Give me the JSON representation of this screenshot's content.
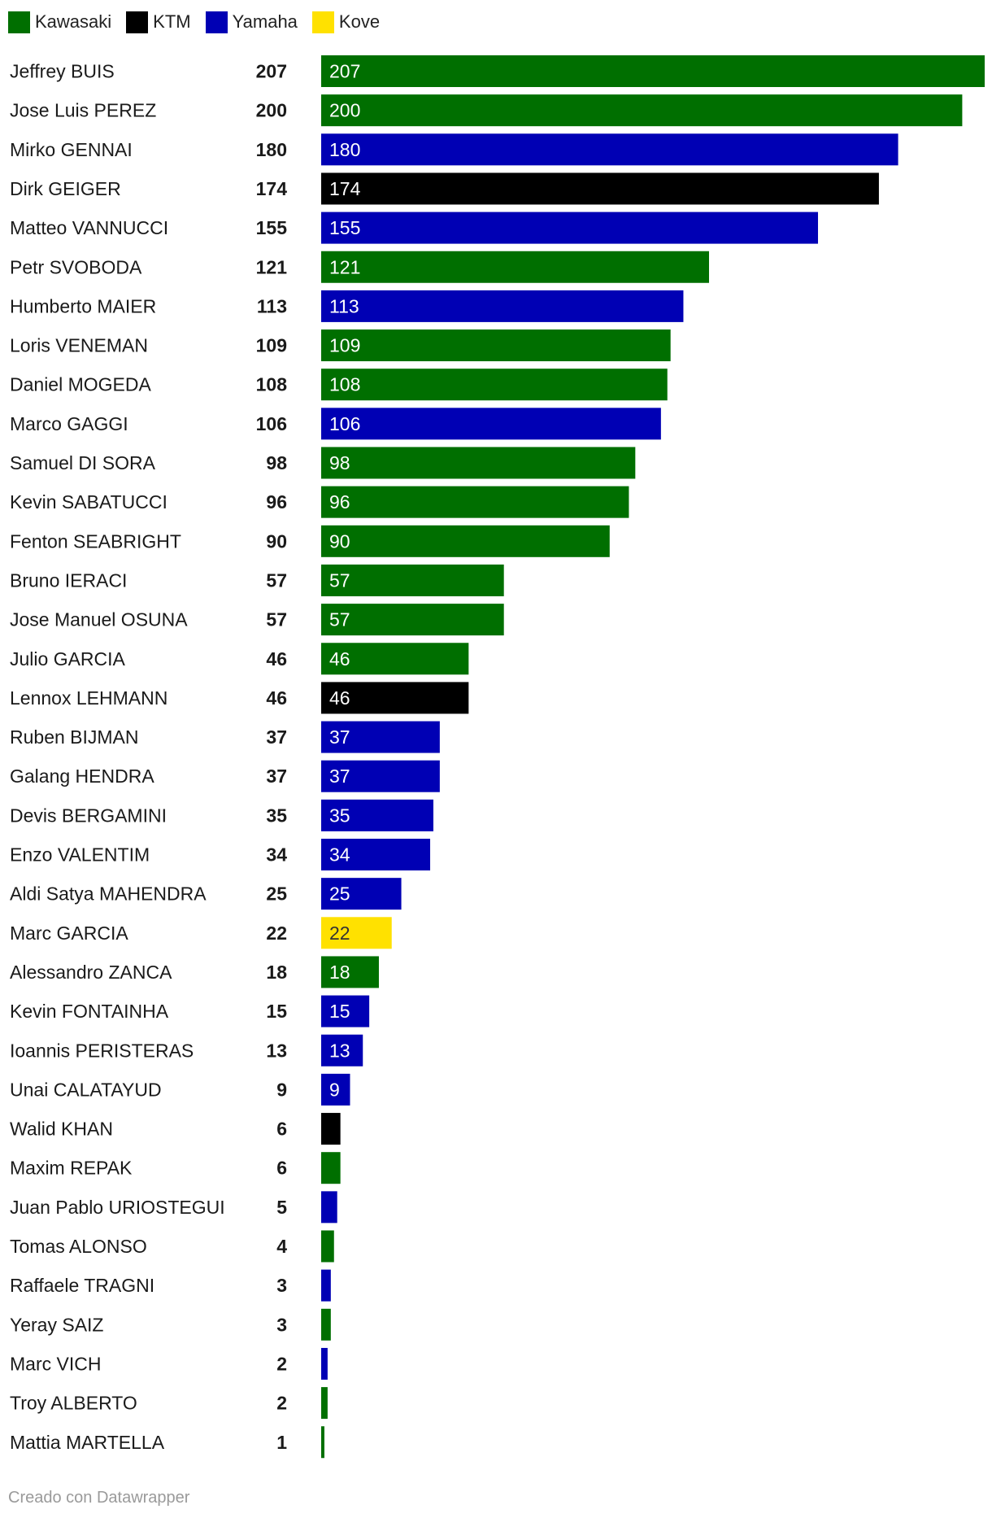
{
  "legend": [
    {
      "label": "Kawasaki",
      "color": "#006f00"
    },
    {
      "label": "KTM",
      "color": "#000000"
    },
    {
      "label": "Yamaha",
      "color": "#0000b4"
    },
    {
      "label": "Kove",
      "color": "#ffe100"
    }
  ],
  "footer": "Creado con Datawrapper",
  "chart_data": {
    "type": "bar",
    "orientation": "horizontal",
    "xlim": [
      0,
      207
    ],
    "grid": false,
    "legend_position": "top-left",
    "rows": [
      {
        "name": "Jeffrey BUIS",
        "value": 207,
        "brand": "Kawasaki"
      },
      {
        "name": "Jose Luis PEREZ",
        "value": 200,
        "brand": "Kawasaki"
      },
      {
        "name": "Mirko GENNAI",
        "value": 180,
        "brand": "Yamaha"
      },
      {
        "name": "Dirk GEIGER",
        "value": 174,
        "brand": "KTM"
      },
      {
        "name": "Matteo VANNUCCI",
        "value": 155,
        "brand": "Yamaha"
      },
      {
        "name": "Petr SVOBODA",
        "value": 121,
        "brand": "Kawasaki"
      },
      {
        "name": "Humberto MAIER",
        "value": 113,
        "brand": "Yamaha"
      },
      {
        "name": "Loris VENEMAN",
        "value": 109,
        "brand": "Kawasaki"
      },
      {
        "name": "Daniel MOGEDA",
        "value": 108,
        "brand": "Kawasaki"
      },
      {
        "name": "Marco GAGGI",
        "value": 106,
        "brand": "Yamaha"
      },
      {
        "name": "Samuel DI SORA",
        "value": 98,
        "brand": "Kawasaki"
      },
      {
        "name": "Kevin SABATUCCI",
        "value": 96,
        "brand": "Kawasaki"
      },
      {
        "name": "Fenton SEABRIGHT",
        "value": 90,
        "brand": "Kawasaki"
      },
      {
        "name": "Bruno IERACI",
        "value": 57,
        "brand": "Kawasaki"
      },
      {
        "name": "Jose Manuel OSUNA",
        "value": 57,
        "brand": "Kawasaki"
      },
      {
        "name": "Julio GARCIA",
        "value": 46,
        "brand": "Kawasaki"
      },
      {
        "name": "Lennox LEHMANN",
        "value": 46,
        "brand": "KTM"
      },
      {
        "name": "Ruben BIJMAN",
        "value": 37,
        "brand": "Yamaha"
      },
      {
        "name": "Galang HENDRA",
        "value": 37,
        "brand": "Yamaha"
      },
      {
        "name": "Devis BERGAMINI",
        "value": 35,
        "brand": "Yamaha"
      },
      {
        "name": "Enzo VALENTIM",
        "value": 34,
        "brand": "Yamaha"
      },
      {
        "name": "Aldi Satya MAHENDRA",
        "value": 25,
        "brand": "Yamaha"
      },
      {
        "name": "Marc GARCIA",
        "value": 22,
        "brand": "Kove"
      },
      {
        "name": "Alessandro ZANCA",
        "value": 18,
        "brand": "Kawasaki"
      },
      {
        "name": "Kevin FONTAINHA",
        "value": 15,
        "brand": "Yamaha"
      },
      {
        "name": "Ioannis PERISTERAS",
        "value": 13,
        "brand": "Yamaha"
      },
      {
        "name": "Unai CALATAYUD",
        "value": 9,
        "brand": "Yamaha"
      },
      {
        "name": "Walid KHAN",
        "value": 6,
        "brand": "KTM"
      },
      {
        "name": "Maxim REPAK",
        "value": 6,
        "brand": "Kawasaki"
      },
      {
        "name": "Juan Pablo URIOSTEGUI",
        "value": 5,
        "brand": "Yamaha"
      },
      {
        "name": "Tomas ALONSO",
        "value": 4,
        "brand": "Kawasaki"
      },
      {
        "name": "Raffaele TRAGNI",
        "value": 3,
        "brand": "Yamaha"
      },
      {
        "name": "Yeray SAIZ",
        "value": 3,
        "brand": "Kawasaki"
      },
      {
        "name": "Marc VICH",
        "value": 2,
        "brand": "Yamaha"
      },
      {
        "name": "Troy ALBERTO",
        "value": 2,
        "brand": "Kawasaki"
      },
      {
        "name": "Mattia MARTELLA",
        "value": 1,
        "brand": "Kawasaki"
      }
    ]
  }
}
